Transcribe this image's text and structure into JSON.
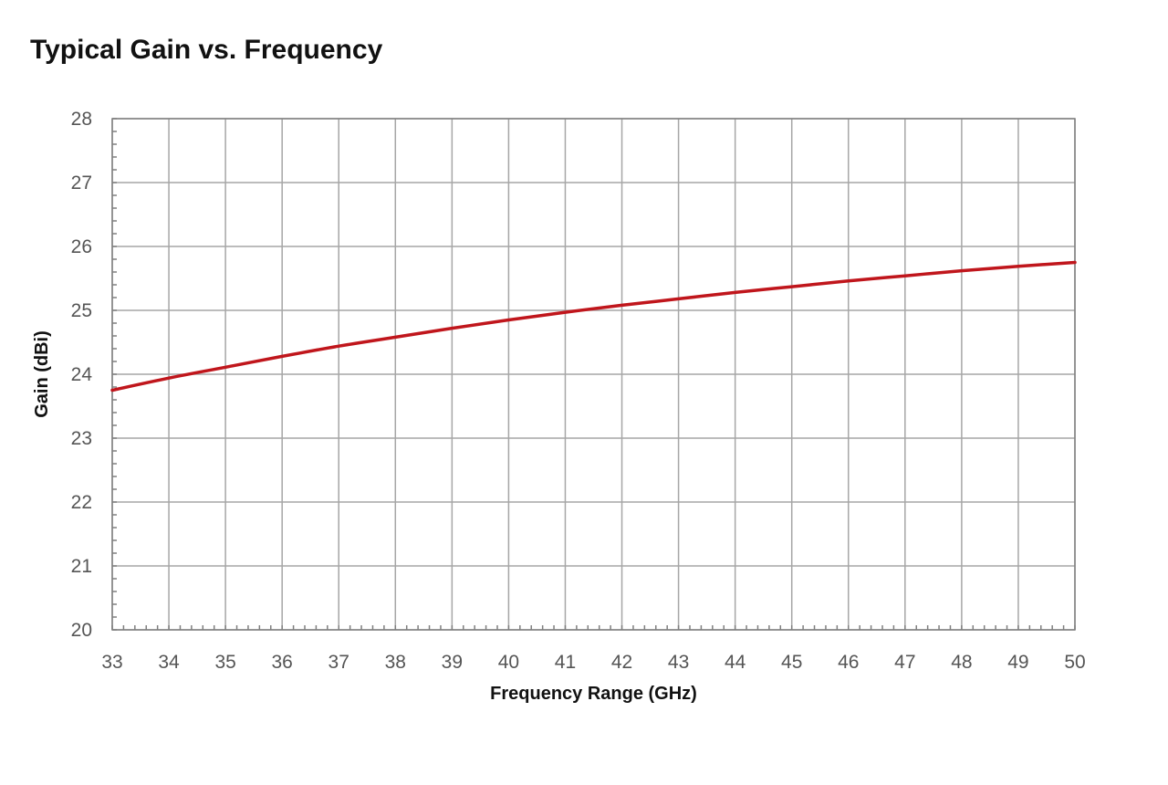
{
  "chart_data": {
    "type": "line",
    "title": "Typical Gain vs. Frequency",
    "xlabel": "Frequency Range (GHz)",
    "ylabel": "Gain (dBi)",
    "xlim": [
      33,
      50
    ],
    "ylim": [
      20,
      28
    ],
    "x_ticks": [
      "33",
      "34",
      "35",
      "36",
      "37",
      "38",
      "39",
      "40",
      "41",
      "42",
      "43",
      "44",
      "45",
      "46",
      "47",
      "48",
      "49",
      "50"
    ],
    "y_ticks": [
      "20",
      "21",
      "22",
      "23",
      "24",
      "25",
      "26",
      "27",
      "28"
    ],
    "grid": true,
    "legend": "none",
    "series": [
      {
        "color": "#c0161c",
        "x": [
          33,
          34,
          35,
          36,
          37,
          38,
          39,
          40,
          41,
          42,
          43,
          44,
          45,
          46,
          47,
          48,
          49,
          50
        ],
        "y": [
          23.75,
          23.94,
          24.11,
          24.28,
          24.44,
          24.58,
          24.72,
          24.85,
          24.97,
          25.08,
          25.18,
          25.28,
          25.37,
          25.46,
          25.54,
          25.62,
          25.69,
          25.75
        ]
      }
    ]
  }
}
